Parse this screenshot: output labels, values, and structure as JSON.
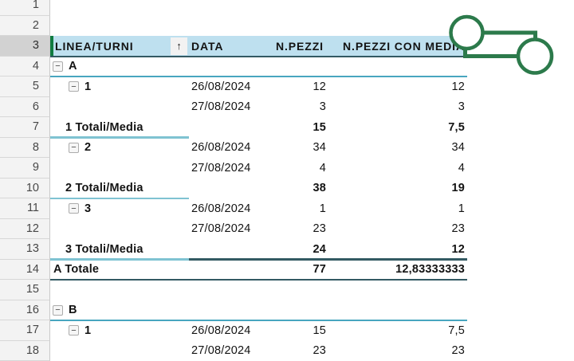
{
  "app": {
    "description": "Excel pivot table worksheet"
  },
  "colors": {
    "header_bg": "#BEE0EF",
    "line_medium": "#48A6BF",
    "line_light": "#7FC3D2",
    "line_dark": "#335A63",
    "selection_green": "#107C41",
    "annotation_green": "#2C7A4B"
  },
  "icons": {
    "collapse": "−",
    "sort_ascending": "↑"
  },
  "rows": [
    {
      "n": "1"
    },
    {
      "n": "2"
    },
    {
      "n": "3",
      "type": "header",
      "active": true,
      "sort": true,
      "a": "LINEA/TURNI",
      "b": "DATA",
      "c": "N.PEZZI",
      "d": "N.PEZZI CON MEDIA",
      "ba": "dark",
      "br": "dark"
    },
    {
      "n": "4",
      "type": "group",
      "collapse": true,
      "a": "A",
      "ba": "medium",
      "br": "medium"
    },
    {
      "n": "5",
      "type": "detail",
      "collapse": true,
      "a": "1",
      "b": "26/08/2024",
      "c": "12",
      "d": "12"
    },
    {
      "n": "6",
      "type": "detail",
      "b": "27/08/2024",
      "c": "3",
      "d": "3"
    },
    {
      "n": "7",
      "type": "subtotal",
      "a": "1 Totali/Media",
      "c": "15",
      "d": "7,5",
      "ba": "light"
    },
    {
      "n": "8",
      "type": "detail",
      "collapse": true,
      "a": "2",
      "b": "26/08/2024",
      "c": "34",
      "d": "34"
    },
    {
      "n": "9",
      "type": "detail",
      "b": "27/08/2024",
      "c": "4",
      "d": "4"
    },
    {
      "n": "10",
      "type": "subtotal",
      "a": "2 Totali/Media",
      "c": "38",
      "d": "19",
      "ba": "light"
    },
    {
      "n": "11",
      "type": "detail",
      "collapse": true,
      "a": "3",
      "b": "26/08/2024",
      "c": "1",
      "d": "1"
    },
    {
      "n": "12",
      "type": "detail",
      "b": "27/08/2024",
      "c": "23",
      "d": "23"
    },
    {
      "n": "13",
      "type": "subtotal",
      "a": "3 Totali/Media",
      "c": "24",
      "d": "12",
      "ba": "light",
      "br": "dark"
    },
    {
      "n": "14",
      "type": "total",
      "a": "A Totale",
      "c": "77",
      "d": "12,83333333",
      "ba": "dark",
      "br": "dark"
    },
    {
      "n": "15"
    },
    {
      "n": "16",
      "type": "group",
      "collapse": true,
      "a": "B",
      "ba": "medium",
      "br": "medium"
    },
    {
      "n": "17",
      "type": "detail",
      "collapse": true,
      "a": "1",
      "b": "26/08/2024",
      "c": "15",
      "d": "7,5"
    },
    {
      "n": "18",
      "type": "detail",
      "b": "27/08/2024",
      "c": "23",
      "d": "23"
    }
  ]
}
